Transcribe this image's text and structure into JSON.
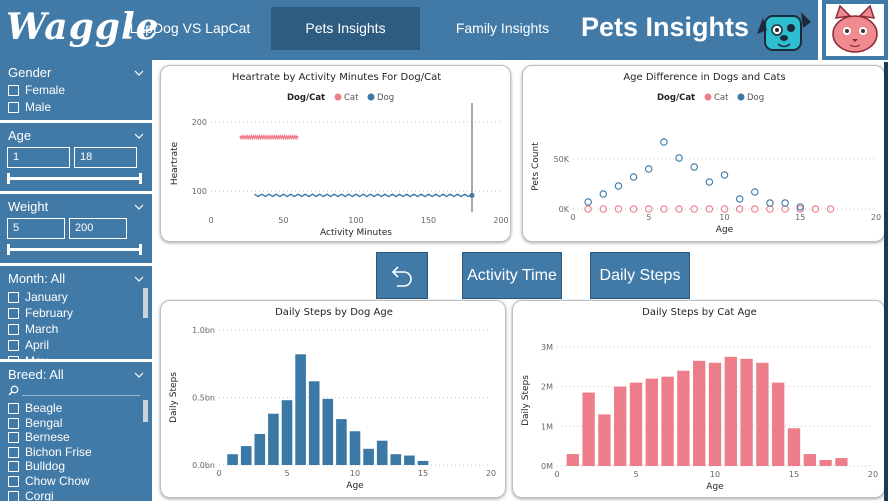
{
  "header": {
    "logo": "Waggle",
    "tabs": [
      "LapDog VS LapCat",
      "Pets Insights",
      "Family Insights"
    ],
    "active_tab": 1,
    "title": "Pets Insights"
  },
  "sidebar": {
    "gender": {
      "title": "Gender",
      "options": [
        "Female",
        "Male"
      ]
    },
    "age": {
      "title": "Age",
      "min": "1",
      "max": "18"
    },
    "weight": {
      "title": "Weight",
      "min": "5",
      "max": "200"
    },
    "month": {
      "title": "Month: All",
      "options": [
        "January",
        "February",
        "March",
        "April",
        "May"
      ]
    },
    "breed": {
      "title": "Breed: All",
      "options": [
        "Beagle",
        "Bengal",
        "Bernese",
        "Bichon Frise",
        "Bulldog",
        "Chow Chow",
        "Corgi"
      ]
    }
  },
  "buttons": {
    "activity_time": "Activity Time",
    "daily_steps": "Daily Steps"
  },
  "colors": {
    "primary": "#4179a7",
    "dog": "#3b78a6",
    "cat": "#ec7d89",
    "active_tab": "#2e5b80"
  },
  "chart_data": [
    {
      "type": "line",
      "title": "Heartrate by Activity Minutes For Dog/Cat",
      "xlabel": "Activity Minutes",
      "ylabel": "Heartrate",
      "legend_title": "Dog/Cat",
      "xlim": [
        0,
        200
      ],
      "ylim": [
        70,
        210
      ],
      "xticks": [
        "0",
        "50",
        "100",
        "150",
        "200"
      ],
      "yticks": [
        {
          "v": 200,
          "t": "200"
        },
        {
          "v": 100,
          "t": "100"
        }
      ],
      "series": [
        {
          "name": "Cat",
          "color": "#ec7d89",
          "x": [
            20,
            60
          ],
          "y": [
            178,
            178
          ]
        },
        {
          "name": "Dog",
          "color": "#3b78a6",
          "x": [
            30,
            180
          ],
          "y": [
            94,
            94
          ]
        }
      ],
      "end_point": {
        "x": 180,
        "y": 94
      }
    },
    {
      "type": "scatter",
      "title": "Age Difference in Dogs and Cats",
      "xlabel": "Age",
      "ylabel": "Pets Count",
      "legend_title": "Dog/Cat",
      "xlim": [
        0,
        20
      ],
      "ylim": [
        0,
        85000
      ],
      "xticks": [
        "0",
        "5",
        "10",
        "15",
        "20"
      ],
      "yticks": [
        {
          "v": 0,
          "t": "0K"
        },
        {
          "v": 50000,
          "t": "50K"
        }
      ],
      "series": [
        {
          "name": "Cat",
          "color": "#ec7d89",
          "x": [
            1,
            2,
            3,
            4,
            5,
            6,
            7,
            8,
            9,
            10,
            11,
            12,
            13,
            14,
            15,
            16,
            17
          ],
          "y": [
            0,
            0,
            0,
            0,
            0,
            0,
            0,
            0,
            0,
            0,
            0,
            0,
            0,
            0,
            0,
            0,
            0
          ]
        },
        {
          "name": "Dog",
          "color": "#3b78a6",
          "x": [
            1,
            2,
            3,
            4,
            5,
            6,
            7,
            8,
            9,
            10,
            11,
            12,
            13,
            14,
            15
          ],
          "y": [
            7000,
            15000,
            23000,
            32000,
            40000,
            67000,
            51000,
            42000,
            27000,
            34000,
            10000,
            17000,
            6000,
            6000,
            2000
          ]
        }
      ]
    },
    {
      "type": "bar",
      "title": "Daily Steps by Dog Age",
      "xlabel": "Age",
      "ylabel": "Daily Steps",
      "color": "#3b78a6",
      "xlim": [
        0,
        20
      ],
      "ylim": [
        0,
        1.0
      ],
      "xticks": [
        "0",
        "5",
        "10",
        "15",
        "20"
      ],
      "yticks": [
        {
          "v": 0,
          "t": "0.0bn"
        },
        {
          "v": 0.5,
          "t": "0.5bn"
        },
        {
          "v": 1.0,
          "t": "1.0bn"
        }
      ],
      "x": [
        1,
        2,
        3,
        4,
        5,
        6,
        7,
        8,
        9,
        10,
        11,
        12,
        13,
        14,
        15
      ],
      "values": [
        0.08,
        0.14,
        0.23,
        0.38,
        0.48,
        0.82,
        0.62,
        0.49,
        0.34,
        0.25,
        0.12,
        0.18,
        0.08,
        0.07,
        0.03
      ]
    },
    {
      "type": "bar",
      "title": "Daily Steps by Cat Age",
      "xlabel": "Age",
      "ylabel": "Daily Steps",
      "color": "#ec7d89",
      "xlim": [
        0,
        20
      ],
      "ylim": [
        0,
        3.3
      ],
      "xticks": [
        "0",
        "5",
        "10",
        "15",
        "20"
      ],
      "yticks": [
        {
          "v": 0,
          "t": "0M"
        },
        {
          "v": 1,
          "t": "1M"
        },
        {
          "v": 2,
          "t": "2M"
        },
        {
          "v": 3,
          "t": "3M"
        }
      ],
      "x": [
        1,
        2,
        3,
        4,
        5,
        6,
        7,
        8,
        9,
        10,
        11,
        12,
        13,
        14,
        15,
        16,
        17,
        18
      ],
      "values": [
        0.3,
        1.85,
        1.3,
        2.0,
        2.1,
        2.2,
        2.25,
        2.4,
        2.65,
        2.6,
        2.75,
        2.7,
        2.6,
        2.1,
        0.95,
        0.3,
        0.15,
        0.2
      ]
    }
  ]
}
